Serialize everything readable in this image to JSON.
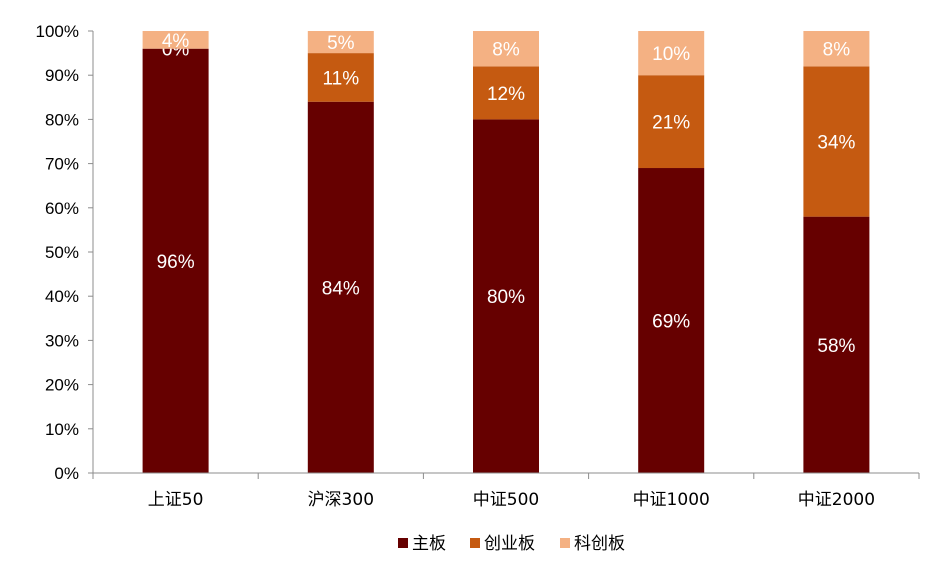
{
  "chart_data": {
    "type": "bar",
    "stacked": true,
    "categories": [
      "上证50",
      "沪深300",
      "中证500",
      "中证1000",
      "中证2000"
    ],
    "series": [
      {
        "name": "主板",
        "color": "#660000",
        "values": [
          96,
          84,
          80,
          69,
          58
        ],
        "labels": [
          "96%",
          "84%",
          "80%",
          "69%",
          "58%"
        ]
      },
      {
        "name": "创业板",
        "color": "#C55A11",
        "values": [
          0,
          11,
          12,
          21,
          34
        ],
        "labels": [
          "0%",
          "11%",
          "12%",
          "21%",
          "34%"
        ]
      },
      {
        "name": "科创板",
        "color": "#F4B183",
        "values": [
          4,
          5,
          8,
          10,
          8
        ],
        "labels": [
          "4%",
          "5%",
          "8%",
          "10%",
          "8%"
        ]
      }
    ],
    "ylim": [
      0,
      100
    ],
    "yticks": [
      "0%",
      "10%",
      "20%",
      "30%",
      "40%",
      "50%",
      "60%",
      "70%",
      "80%",
      "90%",
      "100%"
    ],
    "title": "",
    "xlabel": "",
    "ylabel": "",
    "grid": false,
    "legend_position": "bottom"
  }
}
